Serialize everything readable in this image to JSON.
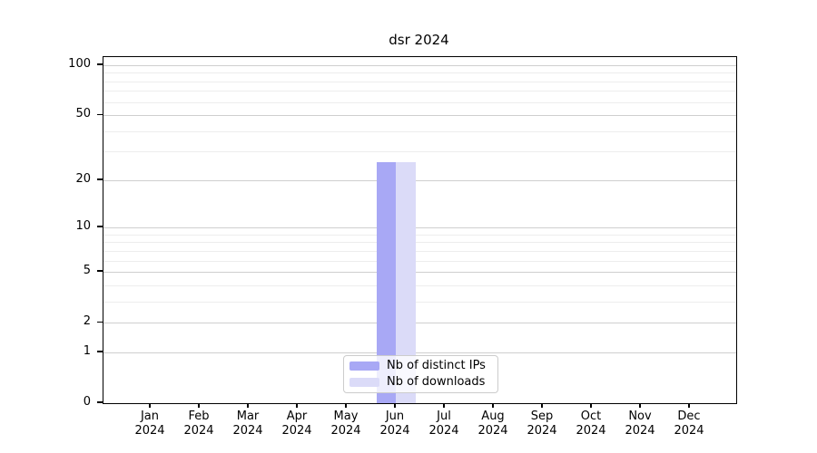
{
  "chart_data": {
    "type": "bar",
    "title": "dsr 2024",
    "categories": [
      "Jan",
      "Feb",
      "Mar",
      "Apr",
      "May",
      "Jun",
      "Jul",
      "Aug",
      "Sep",
      "Oct",
      "Nov",
      "Dec"
    ],
    "x_tick_year": "2024",
    "series": [
      {
        "name": "Nb of distinct IPs",
        "color": "#a8a8f5",
        "values": [
          0,
          0,
          0,
          0,
          0,
          26,
          0,
          0,
          0,
          0,
          0,
          0
        ]
      },
      {
        "name": "Nb of downloads",
        "color": "#dbdbf8",
        "values": [
          0,
          0,
          0,
          0,
          0,
          26,
          0,
          0,
          0,
          0,
          0,
          0
        ]
      }
    ],
    "y_axis": {
      "scale": "log1p",
      "major_ticks": [
        0,
        1,
        2,
        5,
        10,
        20,
        50,
        100
      ],
      "minor_gridlines": [
        3,
        4,
        6,
        7,
        8,
        9,
        30,
        40,
        60,
        70,
        80,
        90
      ],
      "ylim": [
        0,
        112
      ]
    },
    "legend": {
      "position": "lower center"
    },
    "grid": true
  },
  "colors": {
    "major_grid": "#cfcfcf",
    "minor_grid": "#ededed",
    "spine": "#000000",
    "background": "#ffffff"
  }
}
